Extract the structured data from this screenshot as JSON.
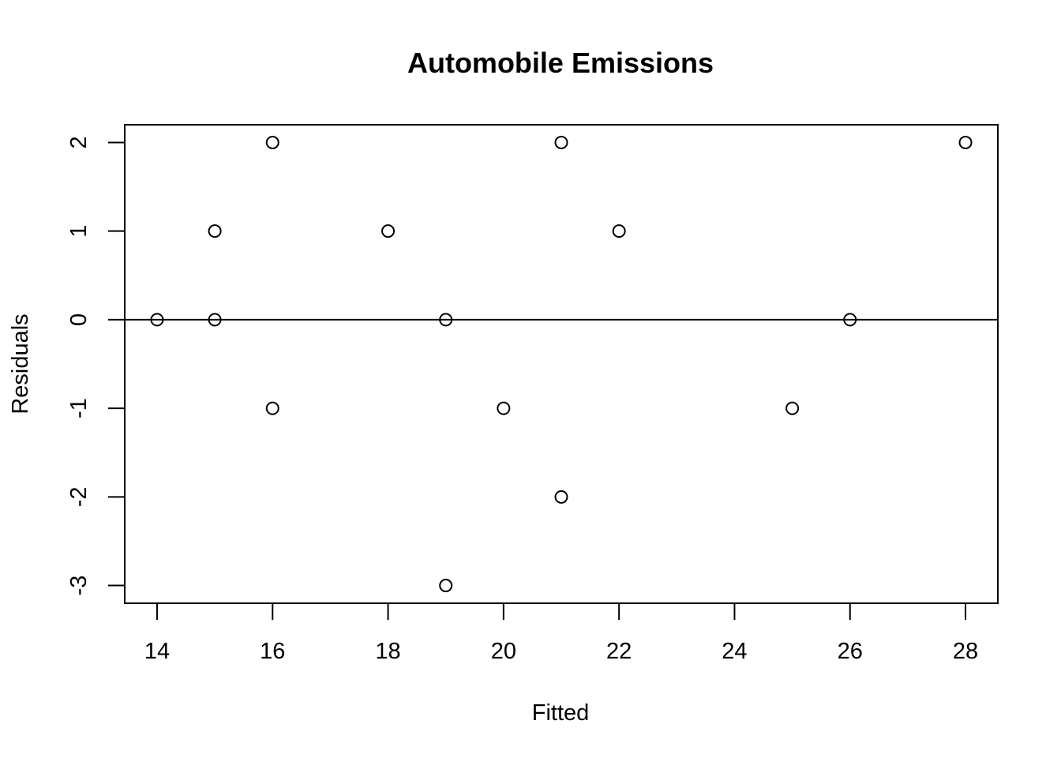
{
  "chart_data": {
    "type": "scatter",
    "title": "Automobile Emissions",
    "xlabel": "Fitted",
    "ylabel": "Residuals",
    "xlim": [
      13.44,
      28.56
    ],
    "ylim": [
      -3.2,
      2.2
    ],
    "x_ticks": [
      14,
      16,
      18,
      20,
      22,
      24,
      26,
      28
    ],
    "x_tick_labels": [
      "14",
      "16",
      "18",
      "20",
      "22",
      "24",
      "26",
      "28"
    ],
    "y_ticks": [
      -3,
      -2,
      -1,
      0,
      1,
      2
    ],
    "y_tick_labels": [
      "-3",
      "-2",
      "-1",
      "0",
      "1",
      "2"
    ],
    "reference_line_y": 0,
    "grid": false,
    "marker": "open-circle",
    "colors": {
      "points": "#000000",
      "axes": "#000000",
      "background": "#ffffff"
    },
    "points": [
      {
        "x": 14,
        "y": 0
      },
      {
        "x": 15,
        "y": 1
      },
      {
        "x": 15,
        "y": 0
      },
      {
        "x": 16,
        "y": 2
      },
      {
        "x": 16,
        "y": -1
      },
      {
        "x": 18,
        "y": 1
      },
      {
        "x": 19,
        "y": 0
      },
      {
        "x": 19,
        "y": -3
      },
      {
        "x": 20,
        "y": -1
      },
      {
        "x": 21,
        "y": 2
      },
      {
        "x": 21,
        "y": -2
      },
      {
        "x": 22,
        "y": 1
      },
      {
        "x": 25,
        "y": -1
      },
      {
        "x": 26,
        "y": 0
      },
      {
        "x": 28,
        "y": 2
      }
    ]
  }
}
